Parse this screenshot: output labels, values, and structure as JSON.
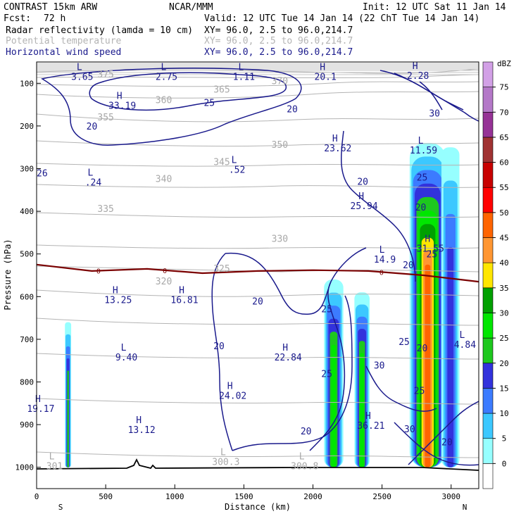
{
  "header": {
    "model": "CONTRAST 15km ARW",
    "center": "NCAR/MMM",
    "init": "Init: 12 UTC Sat 11 Jan 14",
    "fcst_label": "Fcst:",
    "fcst_value": "72 h",
    "valid": "Valid: 12 UTC Tue 14 Jan 14 (22 ChT Tue 14 Jan 14)",
    "fields": [
      {
        "name": "Radar reflectivity (lamda = 10 cm)",
        "xy": "XY=  96.0,  2.5 to  96.0,214.7",
        "color": "#000000"
      },
      {
        "name": "Potential temperature",
        "xy": "XY=  96.0,  2.5 to  96.0,214.7",
        "color": "#b4b4b4"
      },
      {
        "name": "Horizontal wind speed",
        "xy": "XY=  96.0,  2.5 to  96.0,214.7",
        "color": "#1a1a8c"
      }
    ]
  },
  "axes": {
    "xlabel": "Distance (km)",
    "ylabel": "Pressure (hPa)",
    "x_ticks": [
      0,
      500,
      1000,
      1500,
      2000,
      2500,
      3000
    ],
    "y_ticks": [
      100,
      200,
      300,
      400,
      500,
      600,
      700,
      800,
      900,
      1000
    ],
    "left_end": "S",
    "right_end": "N",
    "xlim": [
      0,
      3200
    ],
    "ylim": [
      1050,
      50
    ]
  },
  "colorbar": {
    "unit": "dBZ",
    "levels": [
      0,
      5,
      10,
      15,
      20,
      25,
      30,
      35,
      40,
      45,
      50,
      55,
      60,
      65,
      70,
      75
    ],
    "colors": [
      "#ffffff",
      "#96ffff",
      "#3cc8ff",
      "#3c7bff",
      "#3232dc",
      "#1ec81e",
      "#00e600",
      "#00a000",
      "#ffe600",
      "#ff9632",
      "#ff6400",
      "#ff0000",
      "#c80000",
      "#a03232",
      "#963296",
      "#b478c8",
      "#d2a0e6"
    ]
  },
  "chart_data": {
    "type": "heatmap",
    "reflectivity_cells": [
      {
        "x0": 205,
        "x1": 250,
        "top_p": 660,
        "bottom_p": 1000,
        "core_dbz": 20
      },
      {
        "x0": 2080,
        "x1": 2220,
        "top_p": 560,
        "bottom_p": 1000,
        "core_dbz": 25
      },
      {
        "x0": 2300,
        "x1": 2410,
        "top_p": 590,
        "bottom_p": 1000,
        "core_dbz": 25
      },
      {
        "x0": 2700,
        "x1": 2960,
        "top_p": 240,
        "bottom_p": 1000,
        "core_dbz": 45
      },
      {
        "x0": 2930,
        "x1": 3060,
        "top_p": 250,
        "bottom_p": 1000,
        "core_dbz": 15
      }
    ],
    "freezing_level": {
      "label": "0",
      "x": [
        0,
        400,
        800,
        1200,
        1600,
        2000,
        2400,
        2800,
        3200
      ],
      "p": [
        525,
        540,
        535,
        545,
        540,
        538,
        540,
        550,
        565
      ]
    },
    "theta_contours": [
      {
        "label": "300.3",
        "p": 990
      },
      {
        "label": "320",
        "p": 565
      },
      {
        "label": "325",
        "p": 535
      },
      {
        "label": "330",
        "p": 465
      },
      {
        "label": "335",
        "p": 395
      },
      {
        "label": "340",
        "p": 325
      },
      {
        "label": "345",
        "p": 285
      },
      {
        "label": "350",
        "p": 245
      },
      {
        "label": "355",
        "p": 180
      },
      {
        "label": "360",
        "p": 140
      },
      {
        "label": "365",
        "p": 115
      },
      {
        "label": "370",
        "p": 95
      },
      {
        "label": "375",
        "p": 80
      }
    ],
    "wind_contour_labels": [
      "20",
      "25",
      "30",
      "26"
    ],
    "extrema": [
      {
        "kind": "H",
        "value": "33.19",
        "x": 620,
        "p": 150,
        "color": "blue"
      },
      {
        "kind": "L",
        "value": ".24",
        "x": 410,
        "p": 330,
        "color": "blue"
      },
      {
        "kind": "L",
        "value": ".52",
        "x": 1450,
        "p": 300,
        "color": "blue"
      },
      {
        "kind": "H",
        "value": "13.25",
        "x": 590,
        "p": 605,
        "color": "blue"
      },
      {
        "kind": "H",
        "value": "16.81",
        "x": 1070,
        "p": 605,
        "color": "blue"
      },
      {
        "kind": "L",
        "value": "9.40",
        "x": 650,
        "p": 740,
        "color": "blue"
      },
      {
        "kind": "H",
        "value": "19.17",
        "x": 30,
        "p": 860,
        "color": "blue"
      },
      {
        "kind": "H",
        "value": "13.12",
        "x": 760,
        "p": 910,
        "color": "blue"
      },
      {
        "kind": "H",
        "value": "24.02",
        "x": 1420,
        "p": 830,
        "color": "blue"
      },
      {
        "kind": "H",
        "value": "22.84",
        "x": 1820,
        "p": 740,
        "color": "blue"
      },
      {
        "kind": "H",
        "value": "23.62",
        "x": 2180,
        "p": 250,
        "color": "blue"
      },
      {
        "kind": "H",
        "value": "25.94",
        "x": 2370,
        "p": 385,
        "color": "blue"
      },
      {
        "kind": "L",
        "value": "14.9",
        "x": 2520,
        "p": 510,
        "color": "blue"
      },
      {
        "kind": "H",
        "value": "31.55",
        "x": 2850,
        "p": 485,
        "color": "blue"
      },
      {
        "kind": "L",
        "value": "11.59",
        "x": 2800,
        "p": 255,
        "color": "blue"
      },
      {
        "kind": "H",
        "value": "36.21",
        "x": 2420,
        "p": 900,
        "color": "blue"
      },
      {
        "kind": "L",
        "value": "4.84",
        "x": 3100,
        "p": 710,
        "color": "blue"
      },
      {
        "kind": "H",
        "value": "2.28",
        "x": 2760,
        "p": 80,
        "color": "blue"
      },
      {
        "kind": "H",
        "value": "20.1",
        "x": 2090,
        "p": 82,
        "color": "blue"
      },
      {
        "kind": "L",
        "value": "2.75",
        "x": 940,
        "p": 82,
        "color": "blue"
      },
      {
        "kind": "L",
        "value": "1.11",
        "x": 1500,
        "p": 82,
        "color": "blue"
      },
      {
        "kind": "L",
        "value": "3.65",
        "x": 330,
        "p": 82,
        "color": "blue"
      },
      {
        "kind": "L",
        "value": "300.3",
        "x": 1370,
        "p": 985,
        "color": "gray"
      },
      {
        "kind": "L",
        "value": "300.8",
        "x": 1940,
        "p": 995,
        "color": "gray"
      },
      {
        "kind": "L",
        "value": "301",
        "x": 130,
        "p": 995,
        "color": "gray"
      }
    ]
  }
}
